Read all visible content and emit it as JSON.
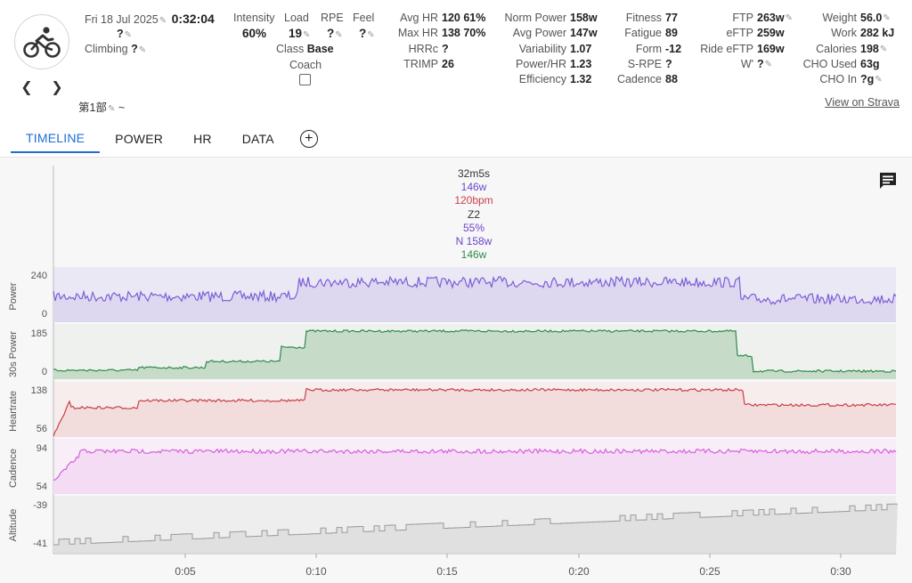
{
  "activity": {
    "date": "Fri 18 Jul 2025",
    "duration": "0:32:04",
    "name": "?",
    "climbing_label": "Climbing",
    "climbing_value": "?",
    "subtitle": "第1部",
    "subtitle_suffix": "~",
    "view_on_strava": "View on Strava"
  },
  "metrics_a": {
    "intensity_label": "Intensity",
    "intensity_value": "60%",
    "load_label": "Load",
    "load_value": "19",
    "rpe_label": "RPE",
    "rpe_value": "?",
    "feel_label": "Feel",
    "feel_value": "?",
    "class_label": "Class",
    "class_value": "Base",
    "coach_label": "Coach"
  },
  "stats_hr": [
    {
      "label": "Avg HR",
      "value": "120 61%"
    },
    {
      "label": "Max HR",
      "value": "138 70%"
    },
    {
      "label": "HRRc",
      "value": "?"
    },
    {
      "label": "TRIMP",
      "value": "26"
    }
  ],
  "stats_power": [
    {
      "label": "Norm Power",
      "value": "158w"
    },
    {
      "label": "Avg Power",
      "value": "147w"
    },
    {
      "label": "Variability",
      "value": "1.07"
    },
    {
      "label": "Power/HR",
      "value": "1.23"
    },
    {
      "label": "Efficiency",
      "value": "1.32"
    }
  ],
  "stats_fitness": [
    {
      "label": "Fitness",
      "value": "77"
    },
    {
      "label": "Fatigue",
      "value": "89"
    },
    {
      "label": "Form",
      "value": "-12"
    },
    {
      "label": "S-RPE",
      "value": "?"
    },
    {
      "label": "Cadence",
      "value": "88"
    }
  ],
  "stats_ftp": [
    {
      "label": "FTP",
      "value": "263w"
    },
    {
      "label": "eFTP",
      "value": "259w"
    },
    {
      "label": "Ride eFTP",
      "value": "169w"
    },
    {
      "label": "W'",
      "value": "?"
    }
  ],
  "stats_weight": [
    {
      "label": "Weight",
      "value": "56.0"
    },
    {
      "label": "Work",
      "value": "282 kJ"
    },
    {
      "label": "Calories",
      "value": "198"
    },
    {
      "label": "CHO Used",
      "value": "63g"
    },
    {
      "label": "CHO In",
      "value": "?g"
    }
  ],
  "tabs": [
    "TIMELINE",
    "POWER",
    "HR",
    "DATA"
  ],
  "tooltip": {
    "time": "32m5s",
    "power": "146w",
    "hr": "120bpm",
    "zone": "Z2",
    "pct": "55%",
    "np": "N 158w",
    "power30": "146w"
  },
  "charts": {
    "power": {
      "label": "Power",
      "max": "240",
      "min": "0"
    },
    "power30": {
      "label": "30s Power",
      "max": "185",
      "min": "0"
    },
    "hr": {
      "label": "Heartrate",
      "max": "138",
      "min": "56"
    },
    "cadence": {
      "label": "Cadence",
      "max": "94",
      "min": "54"
    },
    "altitude": {
      "label": "Altitude",
      "max": "-39",
      "min": "-41"
    }
  },
  "x_ticks": [
    "0:05",
    "0:10",
    "0:15",
    "0:20",
    "0:25",
    "0:30"
  ],
  "colors": {
    "power": "#7b5fd6",
    "power30": "#2f8a4a",
    "hr": "#c9404a",
    "cadence": "#d85ee0",
    "altitude": "#9a9a9a",
    "accent": "#1e6ed8"
  }
}
